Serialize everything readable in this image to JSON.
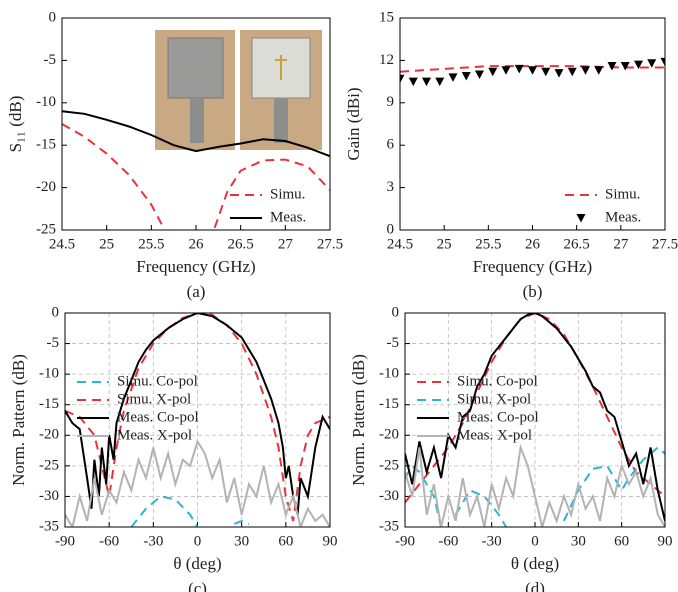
{
  "chart_data": [
    {
      "type": "line",
      "caption": "(a)",
      "xlabel": "Frequency (GHz)",
      "ylabel": "S₁₁ (dB)",
      "xlim": [
        24.5,
        27.5
      ],
      "xticks": [
        24.5,
        25,
        25.5,
        26,
        26.5,
        27,
        27.5
      ],
      "ylim": [
        -25,
        0
      ],
      "yticks": [
        0,
        -5,
        -10,
        -15,
        -20,
        -25
      ],
      "grid": false,
      "legend": "lower right",
      "series": [
        {
          "name": "Simu.",
          "color": "#e8323c",
          "style": "dashed",
          "x": [
            24.5,
            24.75,
            25,
            25.25,
            25.5,
            25.65,
            25.8,
            26,
            26.2,
            26.35,
            26.5,
            26.75,
            27,
            27.25,
            27.5
          ],
          "values": [
            -12.5,
            -14,
            -16,
            -18.5,
            -22,
            -25,
            -29,
            -30,
            -25,
            -20.5,
            -18,
            -16.8,
            -16.7,
            -17.5,
            -20.3
          ]
        },
        {
          "name": "Meas.",
          "color": "#000000",
          "style": "solid",
          "x": [
            24.5,
            24.75,
            25,
            25.25,
            25.5,
            25.75,
            26,
            26.25,
            26.5,
            26.75,
            27,
            27.25,
            27.5
          ],
          "values": [
            -11,
            -11.3,
            -12,
            -12.8,
            -13.8,
            -15,
            -15.7,
            -15.2,
            -14.8,
            -14.3,
            -14.5,
            -15.3,
            -16.3
          ]
        }
      ]
    },
    {
      "type": "line",
      "caption": "(b)",
      "xlabel": "Frequency (GHz)",
      "ylabel": "Gain (dBi)",
      "xlim": [
        24.5,
        27.5
      ],
      "xticks": [
        24.5,
        25,
        25.5,
        26,
        26.5,
        27,
        27.5
      ],
      "ylim": [
        0,
        15
      ],
      "yticks": [
        0,
        3,
        6,
        9,
        12,
        15
      ],
      "grid": false,
      "legend": "lower right",
      "series": [
        {
          "name": "Simu.",
          "color": "#e8323c",
          "style": "dashed",
          "x": [
            24.5,
            25,
            25.5,
            26,
            26.5,
            27,
            27.5
          ],
          "values": [
            11.2,
            11.4,
            11.6,
            11.6,
            11.6,
            11.5,
            11.5
          ]
        },
        {
          "name": "Meas.",
          "color": "#000000",
          "style": "none",
          "marker": "triangle-down",
          "x": [
            24.5,
            24.65,
            24.8,
            24.95,
            25.1,
            25.25,
            25.4,
            25.55,
            25.7,
            25.85,
            26,
            26.15,
            26.3,
            26.45,
            26.6,
            26.75,
            26.9,
            27.05,
            27.2,
            27.35,
            27.5
          ],
          "values": [
            10.7,
            10.5,
            10.5,
            10.5,
            10.8,
            10.9,
            11,
            11.2,
            11.3,
            11.4,
            11.3,
            11.2,
            11.1,
            11.2,
            11.3,
            11.3,
            11.6,
            11.6,
            11.7,
            11.8,
            11.9
          ]
        }
      ]
    },
    {
      "type": "line",
      "caption": "(c)",
      "xlabel": "θ (deg)",
      "ylabel": "Norm. Pattern (dB)",
      "xlim": [
        -90,
        90
      ],
      "xticks": [
        -90,
        -60,
        -30,
        0,
        30,
        60,
        90
      ],
      "ylim": [
        -35,
        0
      ],
      "yticks": [
        0,
        -5,
        -10,
        -15,
        -20,
        -25,
        -30,
        -35
      ],
      "grid": true,
      "legend": "center left",
      "series": [
        {
          "name": "Simu. Co-pol",
          "color": "#29b6d0",
          "style": "dashed",
          "x": [
            -45,
            -35,
            -25,
            -15,
            -5,
            0,
            10,
            25,
            30,
            35
          ],
          "values": [
            -35,
            -32,
            -30,
            -30.5,
            -33,
            -35,
            null,
            -34.5,
            -34,
            -34.5
          ]
        },
        {
          "name": "Simu. X-pol",
          "color": "#e8323c",
          "style": "dashed",
          "x": [
            -90,
            -80,
            -70,
            -65,
            -60,
            -55,
            -50,
            -40,
            -30,
            -20,
            -10,
            0,
            10,
            20,
            30,
            40,
            50,
            55,
            60,
            65,
            70,
            75,
            80,
            90
          ],
          "values": [
            -16,
            -17,
            -20,
            -25,
            -30,
            -22,
            -16,
            -9,
            -5,
            -2.5,
            -0.8,
            0,
            -0.3,
            -2,
            -5,
            -10,
            -17,
            -22,
            -30,
            -34,
            -25,
            -20,
            -18,
            -17
          ]
        },
        {
          "name": "Meas. Co-pol",
          "color": "#000000",
          "style": "solid",
          "x": [
            -90,
            -85,
            -80,
            -75,
            -72,
            -70,
            -67,
            -65,
            -62,
            -60,
            -57,
            -55,
            -50,
            -45,
            -40,
            -35,
            -30,
            -20,
            -10,
            0,
            10,
            20,
            30,
            35,
            40,
            45,
            50,
            55,
            58,
            60,
            62,
            65,
            68,
            70,
            75,
            80,
            85,
            90
          ],
          "values": [
            -16,
            -18,
            -19,
            -27,
            -32,
            -24,
            -30,
            -22,
            -28,
            -20,
            -24,
            -18,
            -14,
            -11,
            -8,
            -6,
            -4.5,
            -2.5,
            -1,
            0,
            -0.5,
            -2,
            -4,
            -6,
            -8,
            -11,
            -14,
            -18,
            -22,
            -27,
            -25,
            -30,
            -33,
            -27,
            -30,
            -22,
            -17,
            -19
          ]
        },
        {
          "name": "Meas. X-pol",
          "color": "#b3b3b3",
          "style": "solid",
          "x": [
            -90,
            -85,
            -80,
            -75,
            -70,
            -65,
            -60,
            -55,
            -50,
            -45,
            -40,
            -35,
            -30,
            -25,
            -20,
            -15,
            -10,
            -5,
            0,
            5,
            10,
            15,
            20,
            25,
            30,
            35,
            40,
            45,
            50,
            55,
            60,
            65,
            70,
            75,
            80,
            85,
            90
          ],
          "values": [
            -33,
            -35,
            -30,
            -34,
            -27,
            -33,
            -29,
            -31,
            -26,
            -29,
            -24,
            -27,
            -22,
            -27,
            -23,
            -28,
            -24,
            -25,
            -21,
            -23,
            -27,
            -24,
            -31,
            -27,
            -33,
            -28,
            -30,
            -25,
            -31,
            -28,
            -33,
            -30,
            -35,
            -32,
            -34,
            -33,
            -35
          ]
        }
      ]
    },
    {
      "type": "line",
      "caption": "(d)",
      "xlabel": "θ (deg)",
      "ylabel": "Norm. Pattern (dB)",
      "xlim": [
        -90,
        90
      ],
      "xticks": [
        -90,
        -60,
        -30,
        0,
        30,
        60,
        90
      ],
      "ylim": [
        -35,
        0
      ],
      "yticks": [
        0,
        -5,
        -10,
        -15,
        -20,
        -25,
        -30,
        -35
      ],
      "grid": true,
      "legend": "center left",
      "series": [
        {
          "name": "Simu. Co-pol",
          "color": "#e8323c",
          "style": "dashed",
          "x": [
            -90,
            -80,
            -70,
            -60,
            -50,
            -40,
            -30,
            -20,
            -10,
            0,
            10,
            20,
            30,
            40,
            50,
            60,
            70,
            80,
            90
          ],
          "values": [
            -31,
            -28,
            -25,
            -22,
            -18,
            -13,
            -8,
            -4,
            -1,
            0,
            -1,
            -3.5,
            -7.5,
            -12,
            -17,
            -22,
            -26,
            -28,
            -30
          ]
        },
        {
          "name": "Simu. X-pol",
          "color": "#29b6d0",
          "style": "dashed",
          "x": [
            -90,
            -85,
            -80,
            -70,
            -65,
            -60,
            -55,
            -45,
            -35,
            -25,
            -20,
            -10,
            20,
            30,
            40,
            50,
            60,
            65,
            75,
            85,
            90
          ],
          "values": [
            -27,
            -25,
            -26,
            -30,
            -35,
            null,
            -33,
            -29,
            -30,
            -33,
            -35,
            null,
            -34,
            -29,
            -25.5,
            -25,
            -29,
            -27,
            -24,
            -22,
            -23
          ]
        },
        {
          "name": "Meas. Co-pol",
          "color": "#000000",
          "style": "solid",
          "x": [
            -90,
            -85,
            -80,
            -75,
            -70,
            -65,
            -60,
            -55,
            -50,
            -45,
            -40,
            -35,
            -30,
            -25,
            -20,
            -15,
            -10,
            -5,
            0,
            5,
            10,
            15,
            20,
            25,
            30,
            35,
            40,
            45,
            50,
            55,
            60,
            65,
            70,
            75,
            80,
            85,
            90
          ],
          "values": [
            -23,
            -28,
            -21,
            -26,
            -22,
            -27,
            -20,
            -22,
            -17,
            -16,
            -12,
            -10,
            -7,
            -5.5,
            -4,
            -2.5,
            -1,
            -0.3,
            0,
            -0.5,
            -1.5,
            -2.5,
            -4,
            -5.5,
            -7.5,
            -9.5,
            -12,
            -13,
            -16,
            -17,
            -21,
            -25,
            -23,
            -28,
            -22,
            -29,
            -34
          ]
        },
        {
          "name": "Meas. X-pol",
          "color": "#b3b3b3",
          "style": "solid",
          "x": [
            -90,
            -85,
            -80,
            -75,
            -70,
            -65,
            -60,
            -55,
            -50,
            -45,
            -40,
            -35,
            -30,
            -25,
            -20,
            -15,
            -10,
            -5,
            0,
            5,
            10,
            15,
            20,
            25,
            30,
            35,
            40,
            45,
            50,
            55,
            60,
            65,
            70,
            75,
            80,
            85,
            90
          ],
          "values": [
            -26,
            -30,
            -22,
            -33,
            -28,
            -35,
            -30,
            -34,
            -27,
            -33,
            -30,
            -35,
            -28,
            -32,
            -27,
            -30,
            -22,
            -25,
            -30,
            -35,
            -31,
            -34,
            -30,
            -33,
            -28,
            -32,
            -30,
            -34,
            -27,
            -30,
            -25,
            -28,
            -26,
            -30,
            -27,
            -33,
            -35
          ]
        }
      ]
    }
  ]
}
